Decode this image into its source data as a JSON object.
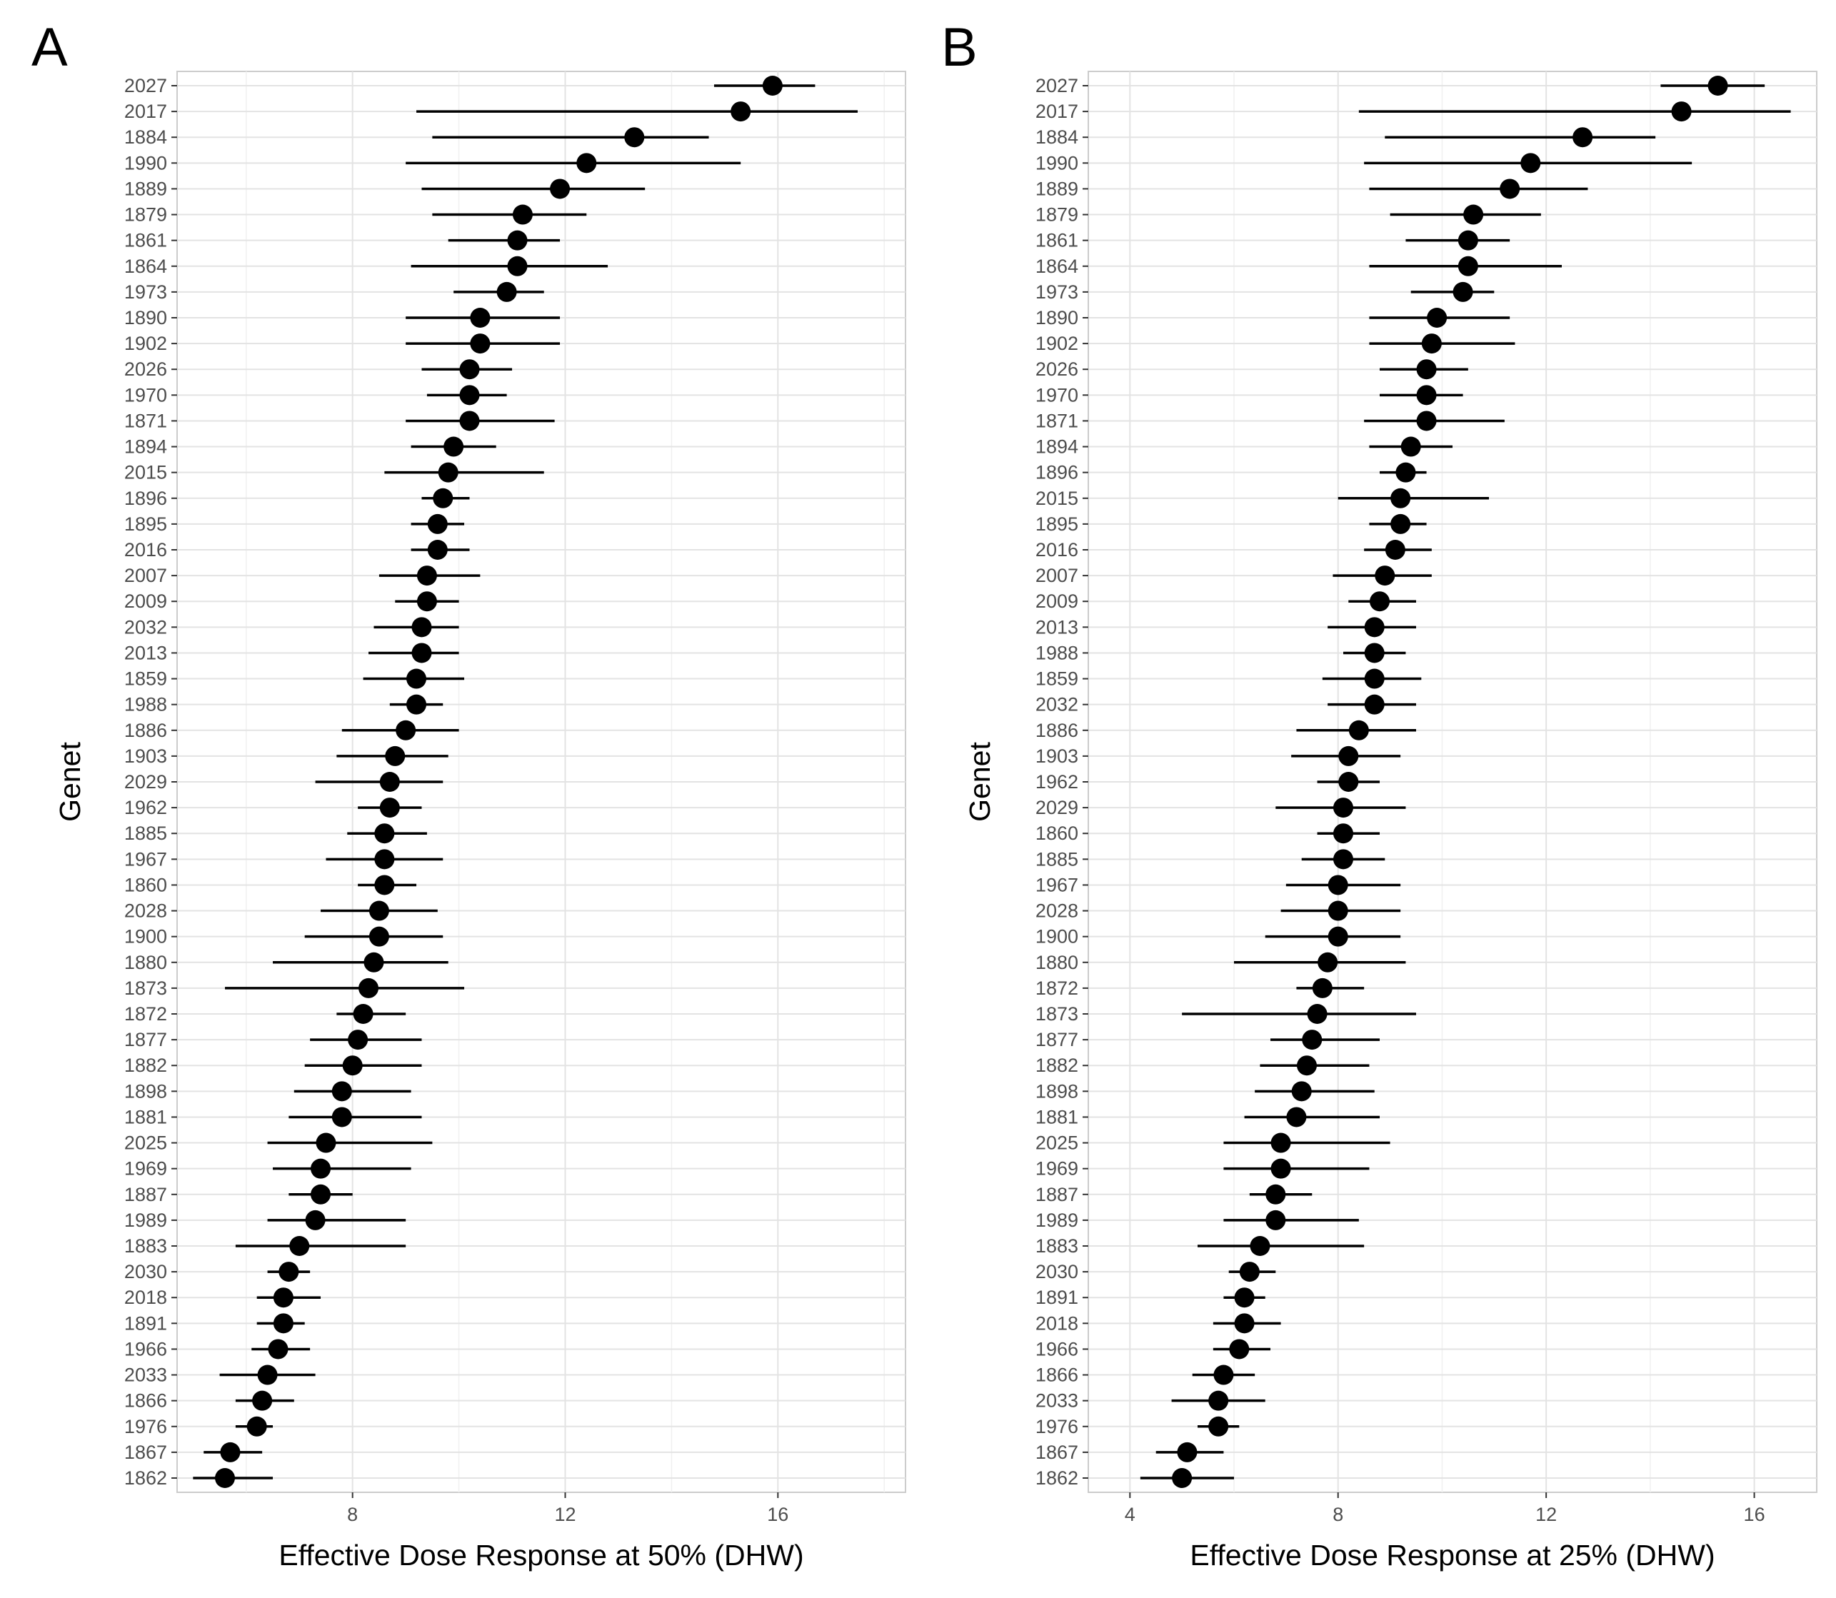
{
  "chart_data": [
    {
      "type": "scatter",
      "panel_label": "A",
      "xlabel": "Effective Dose Response at 50% (DHW)",
      "ylabel": "Genet",
      "xlim": [
        4.7,
        18.4
      ],
      "xticks": [
        8,
        12,
        16
      ],
      "grid": true,
      "points": [
        {
          "genet": "2027",
          "estimate": 15.9,
          "lower": 14.8,
          "upper": 16.7
        },
        {
          "genet": "2017",
          "estimate": 15.3,
          "lower": 9.2,
          "upper": 17.5
        },
        {
          "genet": "1884",
          "estimate": 13.3,
          "lower": 9.5,
          "upper": 14.7
        },
        {
          "genet": "1990",
          "estimate": 12.4,
          "lower": 9.0,
          "upper": 15.3
        },
        {
          "genet": "1889",
          "estimate": 11.9,
          "lower": 9.3,
          "upper": 13.5
        },
        {
          "genet": "1879",
          "estimate": 11.2,
          "lower": 9.5,
          "upper": 12.4
        },
        {
          "genet": "1861",
          "estimate": 11.1,
          "lower": 9.8,
          "upper": 11.9
        },
        {
          "genet": "1864",
          "estimate": 11.1,
          "lower": 9.1,
          "upper": 12.8
        },
        {
          "genet": "1973",
          "estimate": 10.9,
          "lower": 9.9,
          "upper": 11.6
        },
        {
          "genet": "1890",
          "estimate": 10.4,
          "lower": 9.0,
          "upper": 11.9
        },
        {
          "genet": "1902",
          "estimate": 10.4,
          "lower": 9.0,
          "upper": 11.9
        },
        {
          "genet": "2026",
          "estimate": 10.2,
          "lower": 9.3,
          "upper": 11.0
        },
        {
          "genet": "1970",
          "estimate": 10.2,
          "lower": 9.4,
          "upper": 10.9
        },
        {
          "genet": "1871",
          "estimate": 10.2,
          "lower": 9.0,
          "upper": 11.8
        },
        {
          "genet": "1894",
          "estimate": 9.9,
          "lower": 9.1,
          "upper": 10.7
        },
        {
          "genet": "2015",
          "estimate": 9.8,
          "lower": 8.6,
          "upper": 11.6
        },
        {
          "genet": "1896",
          "estimate": 9.7,
          "lower": 9.3,
          "upper": 10.2
        },
        {
          "genet": "1895",
          "estimate": 9.6,
          "lower": 9.1,
          "upper": 10.1
        },
        {
          "genet": "2016",
          "estimate": 9.6,
          "lower": 9.1,
          "upper": 10.2
        },
        {
          "genet": "2007",
          "estimate": 9.4,
          "lower": 8.5,
          "upper": 10.4
        },
        {
          "genet": "2009",
          "estimate": 9.4,
          "lower": 8.8,
          "upper": 10.0
        },
        {
          "genet": "2032",
          "estimate": 9.3,
          "lower": 8.4,
          "upper": 10.0
        },
        {
          "genet": "2013",
          "estimate": 9.3,
          "lower": 8.3,
          "upper": 10.0
        },
        {
          "genet": "1859",
          "estimate": 9.2,
          "lower": 8.2,
          "upper": 10.1
        },
        {
          "genet": "1988",
          "estimate": 9.2,
          "lower": 8.7,
          "upper": 9.7
        },
        {
          "genet": "1886",
          "estimate": 9.0,
          "lower": 7.8,
          "upper": 10.0
        },
        {
          "genet": "1903",
          "estimate": 8.8,
          "lower": 7.7,
          "upper": 9.8
        },
        {
          "genet": "2029",
          "estimate": 8.7,
          "lower": 7.3,
          "upper": 9.7
        },
        {
          "genet": "1962",
          "estimate": 8.7,
          "lower": 8.1,
          "upper": 9.3
        },
        {
          "genet": "1885",
          "estimate": 8.6,
          "lower": 7.9,
          "upper": 9.4
        },
        {
          "genet": "1967",
          "estimate": 8.6,
          "lower": 7.5,
          "upper": 9.7
        },
        {
          "genet": "1860",
          "estimate": 8.6,
          "lower": 8.1,
          "upper": 9.2
        },
        {
          "genet": "2028",
          "estimate": 8.5,
          "lower": 7.4,
          "upper": 9.6
        },
        {
          "genet": "1900",
          "estimate": 8.5,
          "lower": 7.1,
          "upper": 9.7
        },
        {
          "genet": "1880",
          "estimate": 8.4,
          "lower": 6.5,
          "upper": 9.8
        },
        {
          "genet": "1873",
          "estimate": 8.3,
          "lower": 5.6,
          "upper": 10.1
        },
        {
          "genet": "1872",
          "estimate": 8.2,
          "lower": 7.7,
          "upper": 9.0
        },
        {
          "genet": "1877",
          "estimate": 8.1,
          "lower": 7.2,
          "upper": 9.3
        },
        {
          "genet": "1882",
          "estimate": 8.0,
          "lower": 7.1,
          "upper": 9.3
        },
        {
          "genet": "1898",
          "estimate": 7.8,
          "lower": 6.9,
          "upper": 9.1
        },
        {
          "genet": "1881",
          "estimate": 7.8,
          "lower": 6.8,
          "upper": 9.3
        },
        {
          "genet": "2025",
          "estimate": 7.5,
          "lower": 6.4,
          "upper": 9.5
        },
        {
          "genet": "1969",
          "estimate": 7.4,
          "lower": 6.5,
          "upper": 9.1
        },
        {
          "genet": "1887",
          "estimate": 7.4,
          "lower": 6.8,
          "upper": 8.0
        },
        {
          "genet": "1989",
          "estimate": 7.3,
          "lower": 6.4,
          "upper": 9.0
        },
        {
          "genet": "1883",
          "estimate": 7.0,
          "lower": 5.8,
          "upper": 9.0
        },
        {
          "genet": "2030",
          "estimate": 6.8,
          "lower": 6.4,
          "upper": 7.2
        },
        {
          "genet": "2018",
          "estimate": 6.7,
          "lower": 6.2,
          "upper": 7.4
        },
        {
          "genet": "1891",
          "estimate": 6.7,
          "lower": 6.2,
          "upper": 7.1
        },
        {
          "genet": "1966",
          "estimate": 6.6,
          "lower": 6.1,
          "upper": 7.2
        },
        {
          "genet": "2033",
          "estimate": 6.4,
          "lower": 5.5,
          "upper": 7.3
        },
        {
          "genet": "1866",
          "estimate": 6.3,
          "lower": 5.8,
          "upper": 6.9
        },
        {
          "genet": "1976",
          "estimate": 6.2,
          "lower": 5.8,
          "upper": 6.5
        },
        {
          "genet": "1867",
          "estimate": 5.7,
          "lower": 5.2,
          "upper": 6.3
        },
        {
          "genet": "1862",
          "estimate": 5.6,
          "lower": 5.0,
          "upper": 6.5
        }
      ]
    },
    {
      "type": "scatter",
      "panel_label": "B",
      "xlabel": "Effective Dose Response at 25% (DHW)",
      "ylabel": "Genet",
      "xlim": [
        3.2,
        17.2
      ],
      "xticks": [
        4,
        8,
        12,
        16
      ],
      "grid": true,
      "points": [
        {
          "genet": "2027",
          "estimate": 15.3,
          "lower": 14.2,
          "upper": 16.2
        },
        {
          "genet": "2017",
          "estimate": 14.6,
          "lower": 8.4,
          "upper": 16.7
        },
        {
          "genet": "1884",
          "estimate": 12.7,
          "lower": 8.9,
          "upper": 14.1
        },
        {
          "genet": "1990",
          "estimate": 11.7,
          "lower": 8.5,
          "upper": 14.8
        },
        {
          "genet": "1889",
          "estimate": 11.3,
          "lower": 8.6,
          "upper": 12.8
        },
        {
          "genet": "1879",
          "estimate": 10.6,
          "lower": 9.0,
          "upper": 11.9
        },
        {
          "genet": "1861",
          "estimate": 10.5,
          "lower": 9.3,
          "upper": 11.3
        },
        {
          "genet": "1864",
          "estimate": 10.5,
          "lower": 8.6,
          "upper": 12.3
        },
        {
          "genet": "1973",
          "estimate": 10.4,
          "lower": 9.4,
          "upper": 11.0
        },
        {
          "genet": "1890",
          "estimate": 9.9,
          "lower": 8.6,
          "upper": 11.3
        },
        {
          "genet": "1902",
          "estimate": 9.8,
          "lower": 8.6,
          "upper": 11.4
        },
        {
          "genet": "2026",
          "estimate": 9.7,
          "lower": 8.8,
          "upper": 10.5
        },
        {
          "genet": "1970",
          "estimate": 9.7,
          "lower": 8.8,
          "upper": 10.4
        },
        {
          "genet": "1871",
          "estimate": 9.7,
          "lower": 8.5,
          "upper": 11.2
        },
        {
          "genet": "1894",
          "estimate": 9.4,
          "lower": 8.6,
          "upper": 10.2
        },
        {
          "genet": "1896",
          "estimate": 9.3,
          "lower": 8.8,
          "upper": 9.7
        },
        {
          "genet": "2015",
          "estimate": 9.2,
          "lower": 8.0,
          "upper": 10.9
        },
        {
          "genet": "1895",
          "estimate": 9.2,
          "lower": 8.6,
          "upper": 9.7
        },
        {
          "genet": "2016",
          "estimate": 9.1,
          "lower": 8.5,
          "upper": 9.8
        },
        {
          "genet": "2007",
          "estimate": 8.9,
          "lower": 7.9,
          "upper": 9.8
        },
        {
          "genet": "2009",
          "estimate": 8.8,
          "lower": 8.2,
          "upper": 9.5
        },
        {
          "genet": "2013",
          "estimate": 8.7,
          "lower": 7.8,
          "upper": 9.5
        },
        {
          "genet": "1988",
          "estimate": 8.7,
          "lower": 8.1,
          "upper": 9.3
        },
        {
          "genet": "1859",
          "estimate": 8.7,
          "lower": 7.7,
          "upper": 9.6
        },
        {
          "genet": "2032",
          "estimate": 8.7,
          "lower": 7.8,
          "upper": 9.5
        },
        {
          "genet": "1886",
          "estimate": 8.4,
          "lower": 7.2,
          "upper": 9.5
        },
        {
          "genet": "1903",
          "estimate": 8.2,
          "lower": 7.1,
          "upper": 9.2
        },
        {
          "genet": "1962",
          "estimate": 8.2,
          "lower": 7.6,
          "upper": 8.8
        },
        {
          "genet": "2029",
          "estimate": 8.1,
          "lower": 6.8,
          "upper": 9.3
        },
        {
          "genet": "1860",
          "estimate": 8.1,
          "lower": 7.6,
          "upper": 8.8
        },
        {
          "genet": "1885",
          "estimate": 8.1,
          "lower": 7.3,
          "upper": 8.9
        },
        {
          "genet": "1967",
          "estimate": 8.0,
          "lower": 7.0,
          "upper": 9.2
        },
        {
          "genet": "2028",
          "estimate": 8.0,
          "lower": 6.9,
          "upper": 9.2
        },
        {
          "genet": "1900",
          "estimate": 8.0,
          "lower": 6.6,
          "upper": 9.2
        },
        {
          "genet": "1880",
          "estimate": 7.8,
          "lower": 6.0,
          "upper": 9.3
        },
        {
          "genet": "1872",
          "estimate": 7.7,
          "lower": 7.2,
          "upper": 8.5
        },
        {
          "genet": "1873",
          "estimate": 7.6,
          "lower": 5.0,
          "upper": 9.5
        },
        {
          "genet": "1877",
          "estimate": 7.5,
          "lower": 6.7,
          "upper": 8.8
        },
        {
          "genet": "1882",
          "estimate": 7.4,
          "lower": 6.5,
          "upper": 8.6
        },
        {
          "genet": "1898",
          "estimate": 7.3,
          "lower": 6.4,
          "upper": 8.7
        },
        {
          "genet": "1881",
          "estimate": 7.2,
          "lower": 6.2,
          "upper": 8.8
        },
        {
          "genet": "2025",
          "estimate": 6.9,
          "lower": 5.8,
          "upper": 9.0
        },
        {
          "genet": "1969",
          "estimate": 6.9,
          "lower": 5.8,
          "upper": 8.6
        },
        {
          "genet": "1887",
          "estimate": 6.8,
          "lower": 6.3,
          "upper": 7.5
        },
        {
          "genet": "1989",
          "estimate": 6.8,
          "lower": 5.8,
          "upper": 8.4
        },
        {
          "genet": "1883",
          "estimate": 6.5,
          "lower": 5.3,
          "upper": 8.5
        },
        {
          "genet": "2030",
          "estimate": 6.3,
          "lower": 5.9,
          "upper": 6.8
        },
        {
          "genet": "1891",
          "estimate": 6.2,
          "lower": 5.8,
          "upper": 6.6
        },
        {
          "genet": "2018",
          "estimate": 6.2,
          "lower": 5.6,
          "upper": 6.9
        },
        {
          "genet": "1966",
          "estimate": 6.1,
          "lower": 5.6,
          "upper": 6.7
        },
        {
          "genet": "1866",
          "estimate": 5.8,
          "lower": 5.2,
          "upper": 6.4
        },
        {
          "genet": "2033",
          "estimate": 5.7,
          "lower": 4.8,
          "upper": 6.6
        },
        {
          "genet": "1976",
          "estimate": 5.7,
          "lower": 5.3,
          "upper": 6.1
        },
        {
          "genet": "1867",
          "estimate": 5.1,
          "lower": 4.5,
          "upper": 5.8
        },
        {
          "genet": "1862",
          "estimate": 5.0,
          "lower": 4.2,
          "upper": 6.0
        }
      ]
    }
  ]
}
